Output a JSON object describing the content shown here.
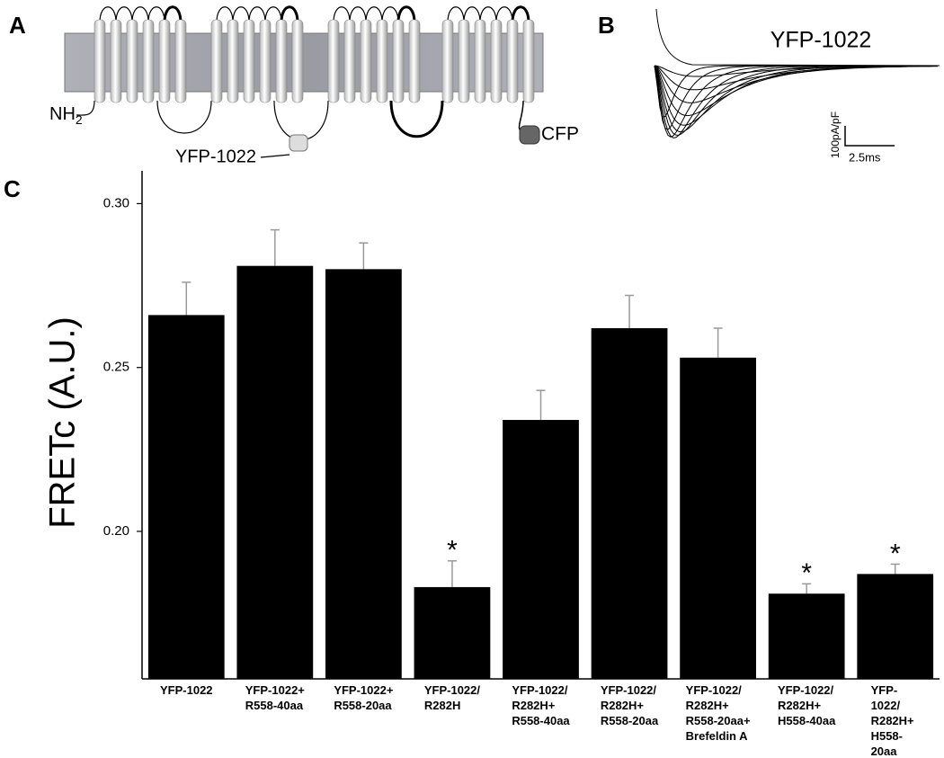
{
  "panel_labels": [
    "A",
    "B",
    "C"
  ],
  "schematic": {
    "n_terminus": "NH",
    "n_terminus_sub": "2",
    "tag_label": "YFP-1022",
    "c_tag": "CFP"
  },
  "trace": {
    "title": "YFP-1022",
    "y_scale": "100pA/pF",
    "x_scale": "2.5ms"
  },
  "chart_data": {
    "type": "bar",
    "ylabel": "FRETc (A.U.)",
    "categories": [
      "YFP-1022",
      "YFP-1022+\nR558-40aa",
      "YFP-1022+\nR558-20aa",
      "YFP-1022/\nR282H",
      "YFP-1022/\nR282H+\nR558-40aa",
      "YFP-1022/\nR282H+\nR558-20aa",
      "YFP-1022/\nR282H+\nR558-20aa+\nBrefeldin A",
      "YFP-1022/\nR282H+\nH558-40aa",
      "YFP-1022/\nR282H+\nH558-20aa"
    ],
    "values": [
      0.266,
      0.281,
      0.28,
      0.183,
      0.234,
      0.262,
      0.253,
      0.181,
      0.187
    ],
    "errors": [
      0.01,
      0.011,
      0.008,
      0.008,
      0.009,
      0.01,
      0.009,
      0.003,
      0.003
    ],
    "value_annotations": [
      null,
      null,
      null,
      "*",
      null,
      null,
      null,
      "*",
      "*"
    ],
    "color": "#000000",
    "ylim": [
      0.155,
      0.31
    ],
    "yticks": [
      {
        "value": 0.2,
        "label": "0.20"
      },
      0.25,
      {
        "value": 0.3,
        "label": "0.30"
      }
    ]
  }
}
